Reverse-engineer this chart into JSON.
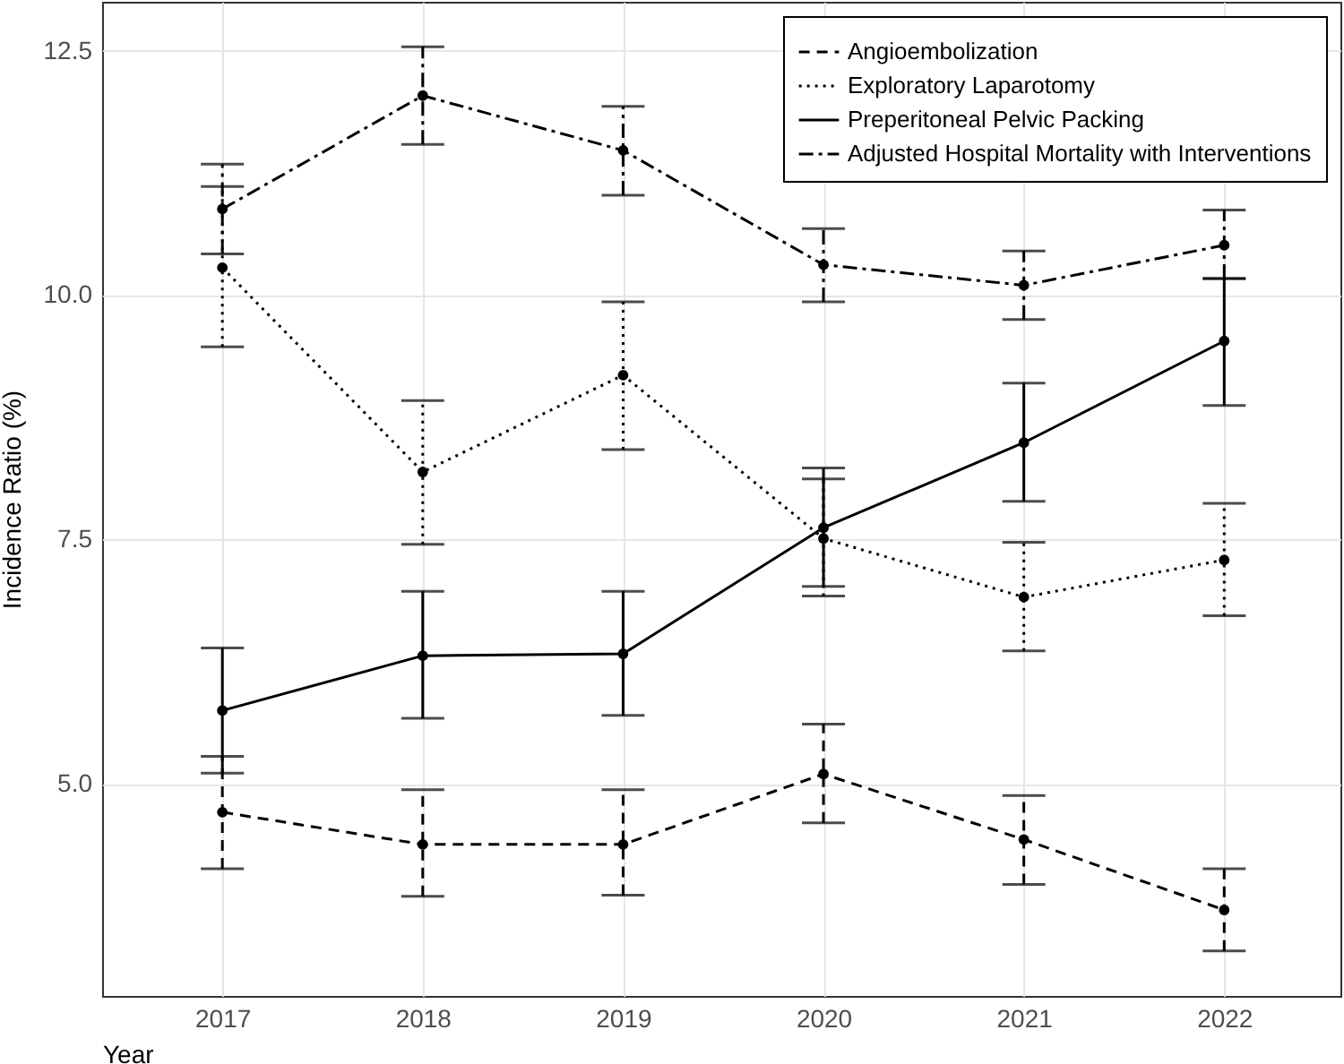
{
  "chart_data": {
    "type": "line",
    "xlabel": "Year",
    "ylabel": "Incidence Ratio (%)",
    "x": [
      2017,
      2018,
      2019,
      2020,
      2021,
      2022
    ],
    "xlim": [
      2016.4,
      2022.58
    ],
    "xticks": [
      2017,
      2018,
      2019,
      2020,
      2021,
      2022
    ],
    "ylim": [
      2.83,
      13.0
    ],
    "yticks": [
      {
        "value": 5,
        "label": "5.0"
      },
      {
        "value": 7.5,
        "label": "7.5"
      },
      {
        "value": 10,
        "label": "10.0"
      },
      {
        "value": 12.5,
        "label": "12.5"
      }
    ],
    "grid": true,
    "legend": "top right",
    "marker": "circle",
    "series": [
      {
        "name": "Angioembolization",
        "color": "#000000",
        "line_style": "dashed",
        "values": [
          4.71,
          4.38,
          4.38,
          5.1,
          4.43,
          3.71
        ],
        "errors": [
          [
            4.13,
            5.28
          ],
          [
            3.85,
            4.94
          ],
          [
            3.86,
            4.94
          ],
          [
            4.6,
            5.61
          ],
          [
            3.97,
            4.88
          ],
          [
            3.29,
            4.13
          ]
        ]
      },
      {
        "name": "Exploratory Laparotomy",
        "color": "#000000",
        "line_style": "dotted",
        "values": [
          10.28,
          8.19,
          9.18,
          7.51,
          6.91,
          7.29
        ],
        "errors": [
          [
            9.47,
            11.11
          ],
          [
            7.45,
            8.92
          ],
          [
            8.42,
            9.93
          ],
          [
            6.92,
            8.12
          ],
          [
            6.36,
            7.47
          ],
          [
            6.72,
            7.87
          ]
        ]
      },
      {
        "name": "Preperitoneal Pelvic Packing",
        "color": "#000000",
        "line_style": "solid",
        "values": [
          5.75,
          6.31,
          6.33,
          7.62,
          8.49,
          9.53
        ],
        "errors": [
          [
            5.11,
            6.39
          ],
          [
            5.67,
            6.97
          ],
          [
            5.7,
            6.97
          ],
          [
            7.02,
            8.23
          ],
          [
            7.89,
            9.1
          ],
          [
            8.87,
            10.17
          ]
        ]
      },
      {
        "name": "Adjusted Hospital Mortality with Interventions",
        "color": "#000000",
        "line_style": "dashdot",
        "values": [
          10.88,
          12.04,
          11.48,
          10.31,
          10.1,
          10.51
        ],
        "errors": [
          [
            10.42,
            11.34
          ],
          [
            11.54,
            12.54
          ],
          [
            11.02,
            11.93
          ],
          [
            9.93,
            10.68
          ],
          [
            9.75,
            10.45
          ],
          [
            10.17,
            10.87
          ]
        ]
      }
    ]
  }
}
